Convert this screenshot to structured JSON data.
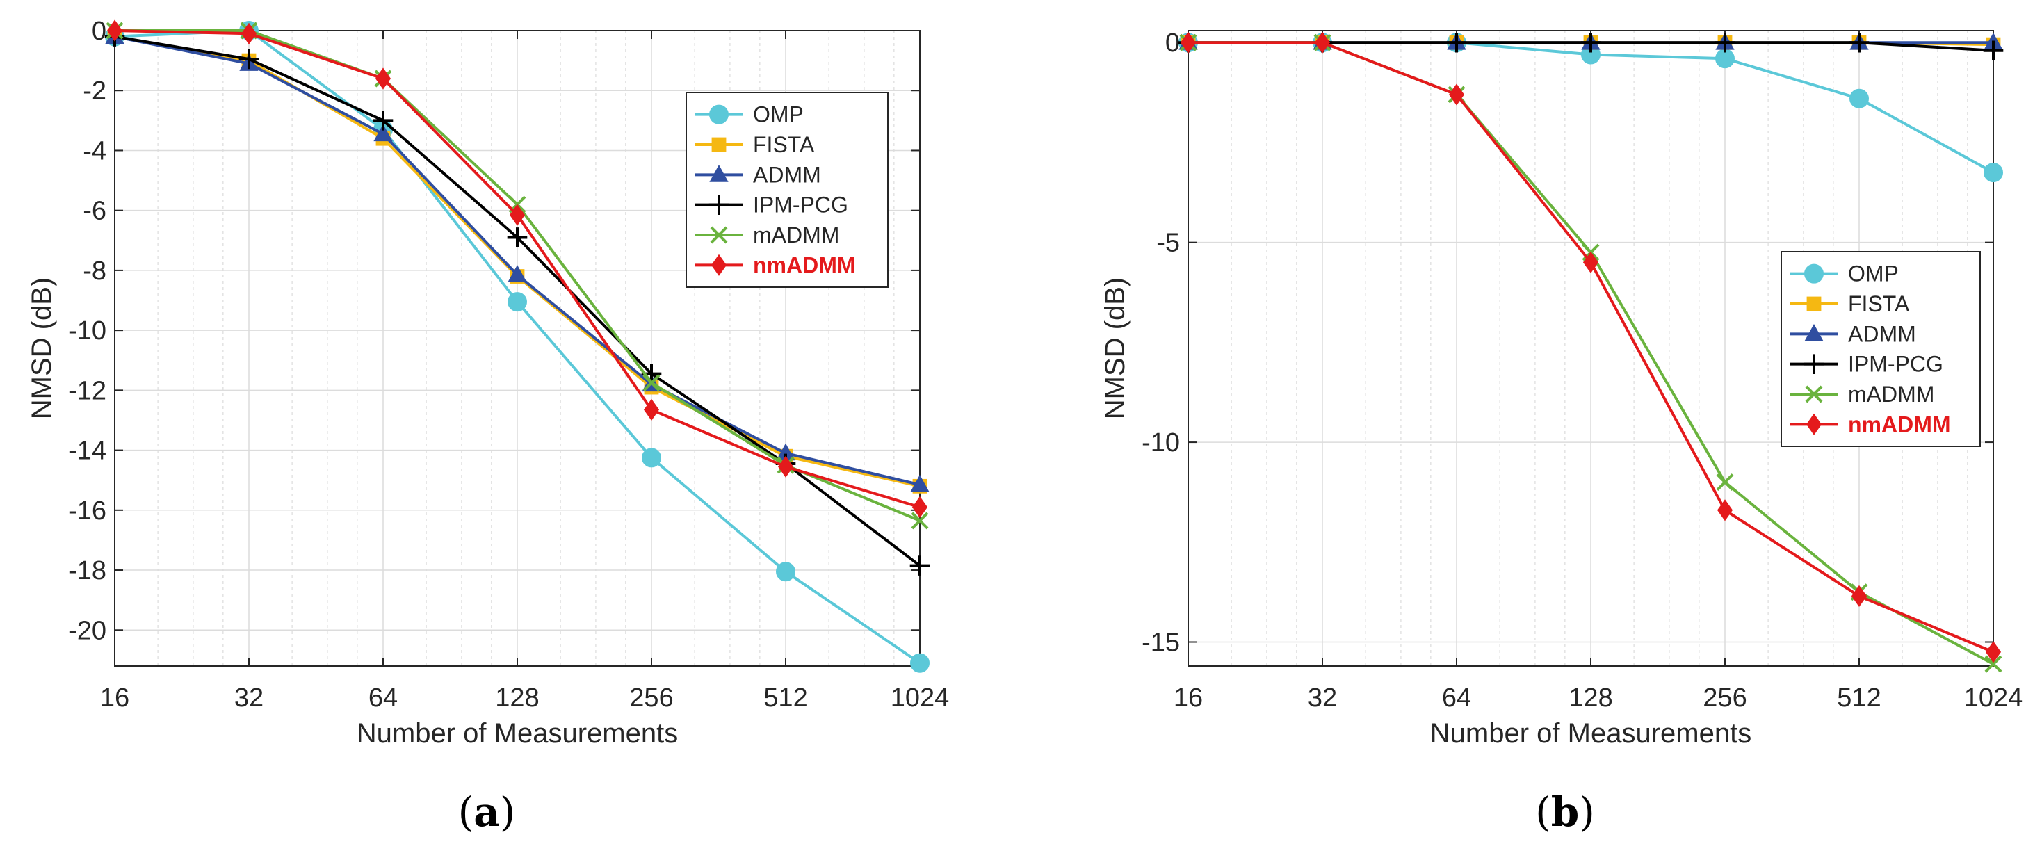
{
  "chart_data": [
    {
      "type": "line",
      "panel_label": {
        "open": "(",
        "letter": "a",
        "close": ")"
      },
      "xlabel": "Number of Measurements",
      "ylabel": "NMSD (dB)",
      "x_scale": "log2",
      "x": [
        16,
        32,
        64,
        128,
        256,
        512,
        1024
      ],
      "x_tick_labels": [
        "16",
        "32",
        "64",
        "128",
        "256",
        "512",
        "1024"
      ],
      "ylim": [
        -21.2,
        0
      ],
      "y_ticks": [
        0,
        -2,
        -4,
        -6,
        -8,
        -10,
        -12,
        -14,
        -16,
        -18,
        -20
      ],
      "y_tick_labels": [
        "0",
        "-2",
        "-4",
        "-6",
        "-8",
        "-10",
        "-12",
        "-14",
        "-16",
        "-18",
        "-20"
      ],
      "grid": true,
      "legend_position": "top-right",
      "series": [
        {
          "name": "OMP",
          "color": "#5bc8d8",
          "marker": "circle",
          "values": [
            -0.2,
            0.0,
            -3.3,
            -9.05,
            -14.25,
            -18.05,
            -21.1
          ]
        },
        {
          "name": "FISTA",
          "color": "#f5b812",
          "marker": "square",
          "values": [
            -0.2,
            -1.0,
            -3.6,
            -8.2,
            -11.9,
            -14.2,
            -15.2
          ]
        },
        {
          "name": "ADMM",
          "color": "#2f4ea0",
          "marker": "triangle",
          "values": [
            -0.2,
            -1.1,
            -3.45,
            -8.15,
            -11.8,
            -14.1,
            -15.15
          ]
        },
        {
          "name": "IPM-PCG",
          "color": "#000000",
          "marker": "plus",
          "values": [
            -0.2,
            -0.95,
            -3.0,
            -6.9,
            -11.45,
            -14.45,
            -17.85
          ]
        },
        {
          "name": "mADMM",
          "color": "#6ab33e",
          "marker": "x",
          "values": [
            0.0,
            0.0,
            -1.6,
            -5.8,
            -11.75,
            -14.5,
            -16.35
          ]
        },
        {
          "name": "nmADMM",
          "color": "#e41a1c",
          "marker": "diamond",
          "bold": true,
          "values": [
            0.0,
            -0.1,
            -1.6,
            -6.15,
            -12.65,
            -14.55,
            -15.9
          ]
        }
      ]
    },
    {
      "type": "line",
      "panel_label": {
        "open": "(",
        "letter": "b",
        "close": ")"
      },
      "xlabel": "Number of Measurements",
      "ylabel": "NMSD (dB)",
      "x_scale": "log2",
      "x": [
        16,
        32,
        64,
        128,
        256,
        512,
        1024
      ],
      "x_tick_labels": [
        "16",
        "32",
        "64",
        "128",
        "256",
        "512",
        "1024"
      ],
      "ylim": [
        -15.6,
        0.3
      ],
      "y_ticks": [
        0,
        -5,
        -10,
        -15
      ],
      "y_tick_labels": [
        "0",
        "-5",
        "-10",
        "-15"
      ],
      "grid": true,
      "legend_position": "middle-right",
      "series": [
        {
          "name": "OMP",
          "color": "#5bc8d8",
          "marker": "circle",
          "values": [
            0.0,
            0.0,
            0.0,
            -0.3,
            -0.4,
            -1.4,
            -3.25
          ]
        },
        {
          "name": "FISTA",
          "color": "#f5b812",
          "marker": "square",
          "values": [
            0.0,
            0.0,
            0.0,
            0.0,
            0.0,
            0.0,
            -0.05
          ]
        },
        {
          "name": "ADMM",
          "color": "#2f4ea0",
          "marker": "triangle",
          "values": [
            0.0,
            0.0,
            0.0,
            0.0,
            0.0,
            0.0,
            0.0
          ]
        },
        {
          "name": "IPM-PCG",
          "color": "#000000",
          "marker": "plus",
          "values": [
            0.0,
            0.0,
            0.0,
            0.0,
            0.0,
            0.0,
            -0.2
          ]
        },
        {
          "name": "mADMM",
          "color": "#6ab33e",
          "marker": "x",
          "values": [
            0.0,
            0.0,
            -1.3,
            -5.25,
            -11.0,
            -13.75,
            -15.55
          ]
        },
        {
          "name": "nmADMM",
          "color": "#e41a1c",
          "marker": "diamond",
          "bold": true,
          "values": [
            0.0,
            0.0,
            -1.3,
            -5.5,
            -11.7,
            -13.85,
            -15.25
          ]
        }
      ]
    }
  ]
}
